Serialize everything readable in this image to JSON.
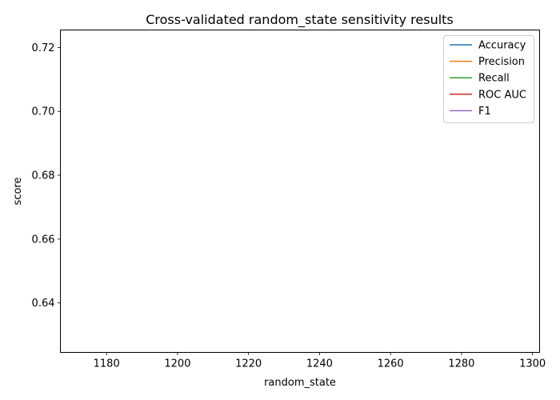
{
  "chart_data": {
    "type": "line",
    "title": "Cross-validated random_state sensitivity results",
    "xlabel": "random_state",
    "ylabel": "score",
    "xlim": [
      1167,
      1302
    ],
    "ylim": [
      0.6245,
      0.7255
    ],
    "x_ticks": [
      1180,
      1200,
      1220,
      1240,
      1260,
      1280,
      1300
    ],
    "y_ticks": [
      0.64,
      0.66,
      0.68,
      0.7,
      0.72
    ],
    "x_tick_labels": [
      "1180",
      "1200",
      "1220",
      "1240",
      "1260",
      "1280",
      "1300"
    ],
    "y_tick_labels": [
      "0.64",
      "0.66",
      "0.68",
      "0.70",
      "0.72"
    ],
    "grid": false,
    "legend_position": "top-right",
    "x": [],
    "series": [
      {
        "name": "Accuracy",
        "color": "#1f77b4",
        "values": []
      },
      {
        "name": "Precision",
        "color": "#ff7f0e",
        "values": []
      },
      {
        "name": "Recall",
        "color": "#2ca02c",
        "values": []
      },
      {
        "name": "ROC AUC",
        "color": "#d62728",
        "values": []
      },
      {
        "name": "F1",
        "color": "#9467bd",
        "values": []
      }
    ]
  }
}
